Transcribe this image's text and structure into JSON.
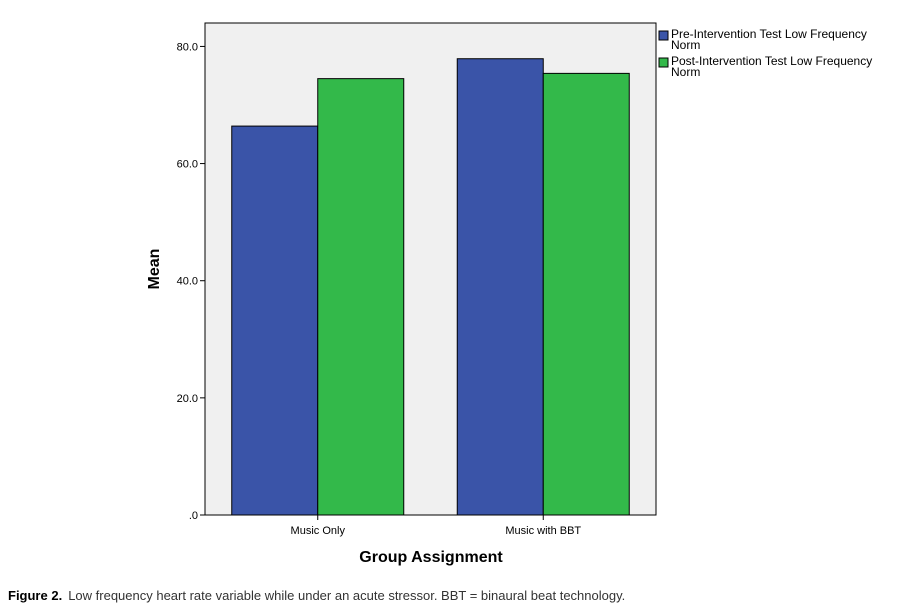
{
  "chart_data": {
    "type": "bar",
    "title": "",
    "xlabel": "Group Assignment",
    "ylabel": "Mean",
    "categories": [
      "Music Only",
      "Music with BBT"
    ],
    "series": [
      {
        "name": "Pre-Intervention Test Low Frequency Norm",
        "values": [
          66.4,
          77.9
        ],
        "color": "#3a54a8"
      },
      {
        "name": "Post-Intervention Test Low Frequency Norm",
        "values": [
          74.5,
          75.4
        ],
        "color": "#33b94a"
      }
    ],
    "ylim": [
      0,
      84
    ],
    "yticks": [
      0,
      20,
      40,
      60,
      80
    ],
    "ytick_labels": [
      ".0",
      "20.0",
      "40.0",
      "60.0",
      "80.0"
    ],
    "grid": false,
    "legend": "right"
  },
  "caption": {
    "label": "Figure 2.",
    "text": "Low frequency heart rate variable while under an acute stressor. BBT = binaural beat technology."
  },
  "plot_background": "#f0f0f0"
}
